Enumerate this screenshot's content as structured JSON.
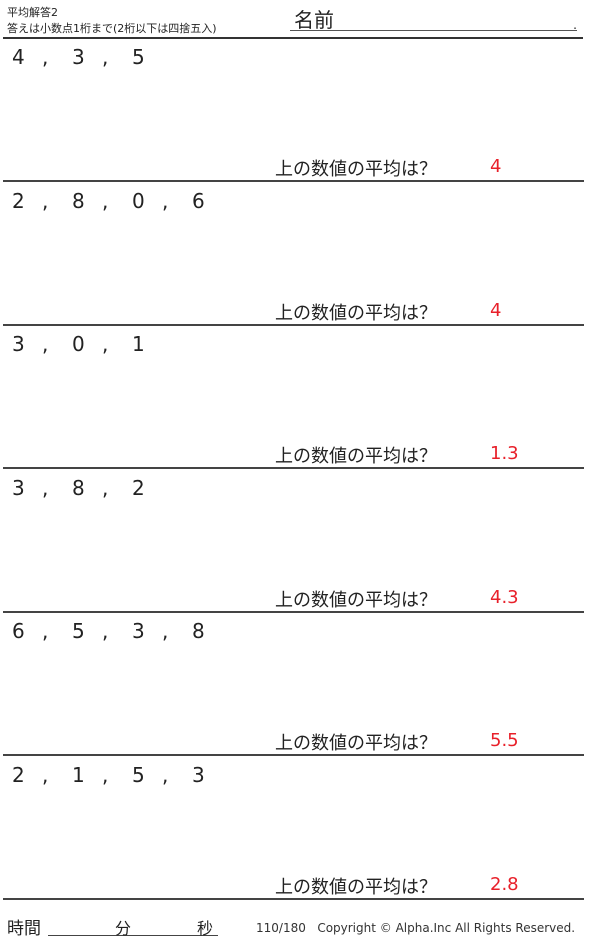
{
  "header": {
    "title": "平均解答2",
    "instruction": "答えは小数点1桁まで(2桁以下は四捨五入)",
    "name_label": "名前",
    "name_end": "."
  },
  "question_label": "上の数値の平均は？",
  "answer_color": "#e8202a",
  "problems": [
    {
      "numbers": [
        "4",
        ",",
        "3",
        ",",
        "5"
      ],
      "answer": "4"
    },
    {
      "numbers": [
        "2",
        ",",
        "8",
        ",",
        "0",
        ",",
        "6"
      ],
      "answer": "4"
    },
    {
      "numbers": [
        "3",
        ",",
        "0",
        ",",
        "1"
      ],
      "answer": "1.3"
    },
    {
      "numbers": [
        "3",
        ",",
        "8",
        ",",
        "2"
      ],
      "answer": "4.3"
    },
    {
      "numbers": [
        "6",
        ",",
        "5",
        ",",
        "3",
        ",",
        "8"
      ],
      "answer": "5.5"
    },
    {
      "numbers": [
        "2",
        ",",
        "1",
        ",",
        "5",
        ",",
        "3"
      ],
      "answer": "2.8"
    }
  ],
  "footer": {
    "time_label": "時間",
    "minutes_label": "分",
    "seconds_label": "秒",
    "page": "110/180",
    "copyright": "Copyright ©  Alpha.Inc All Rights Reserved."
  }
}
